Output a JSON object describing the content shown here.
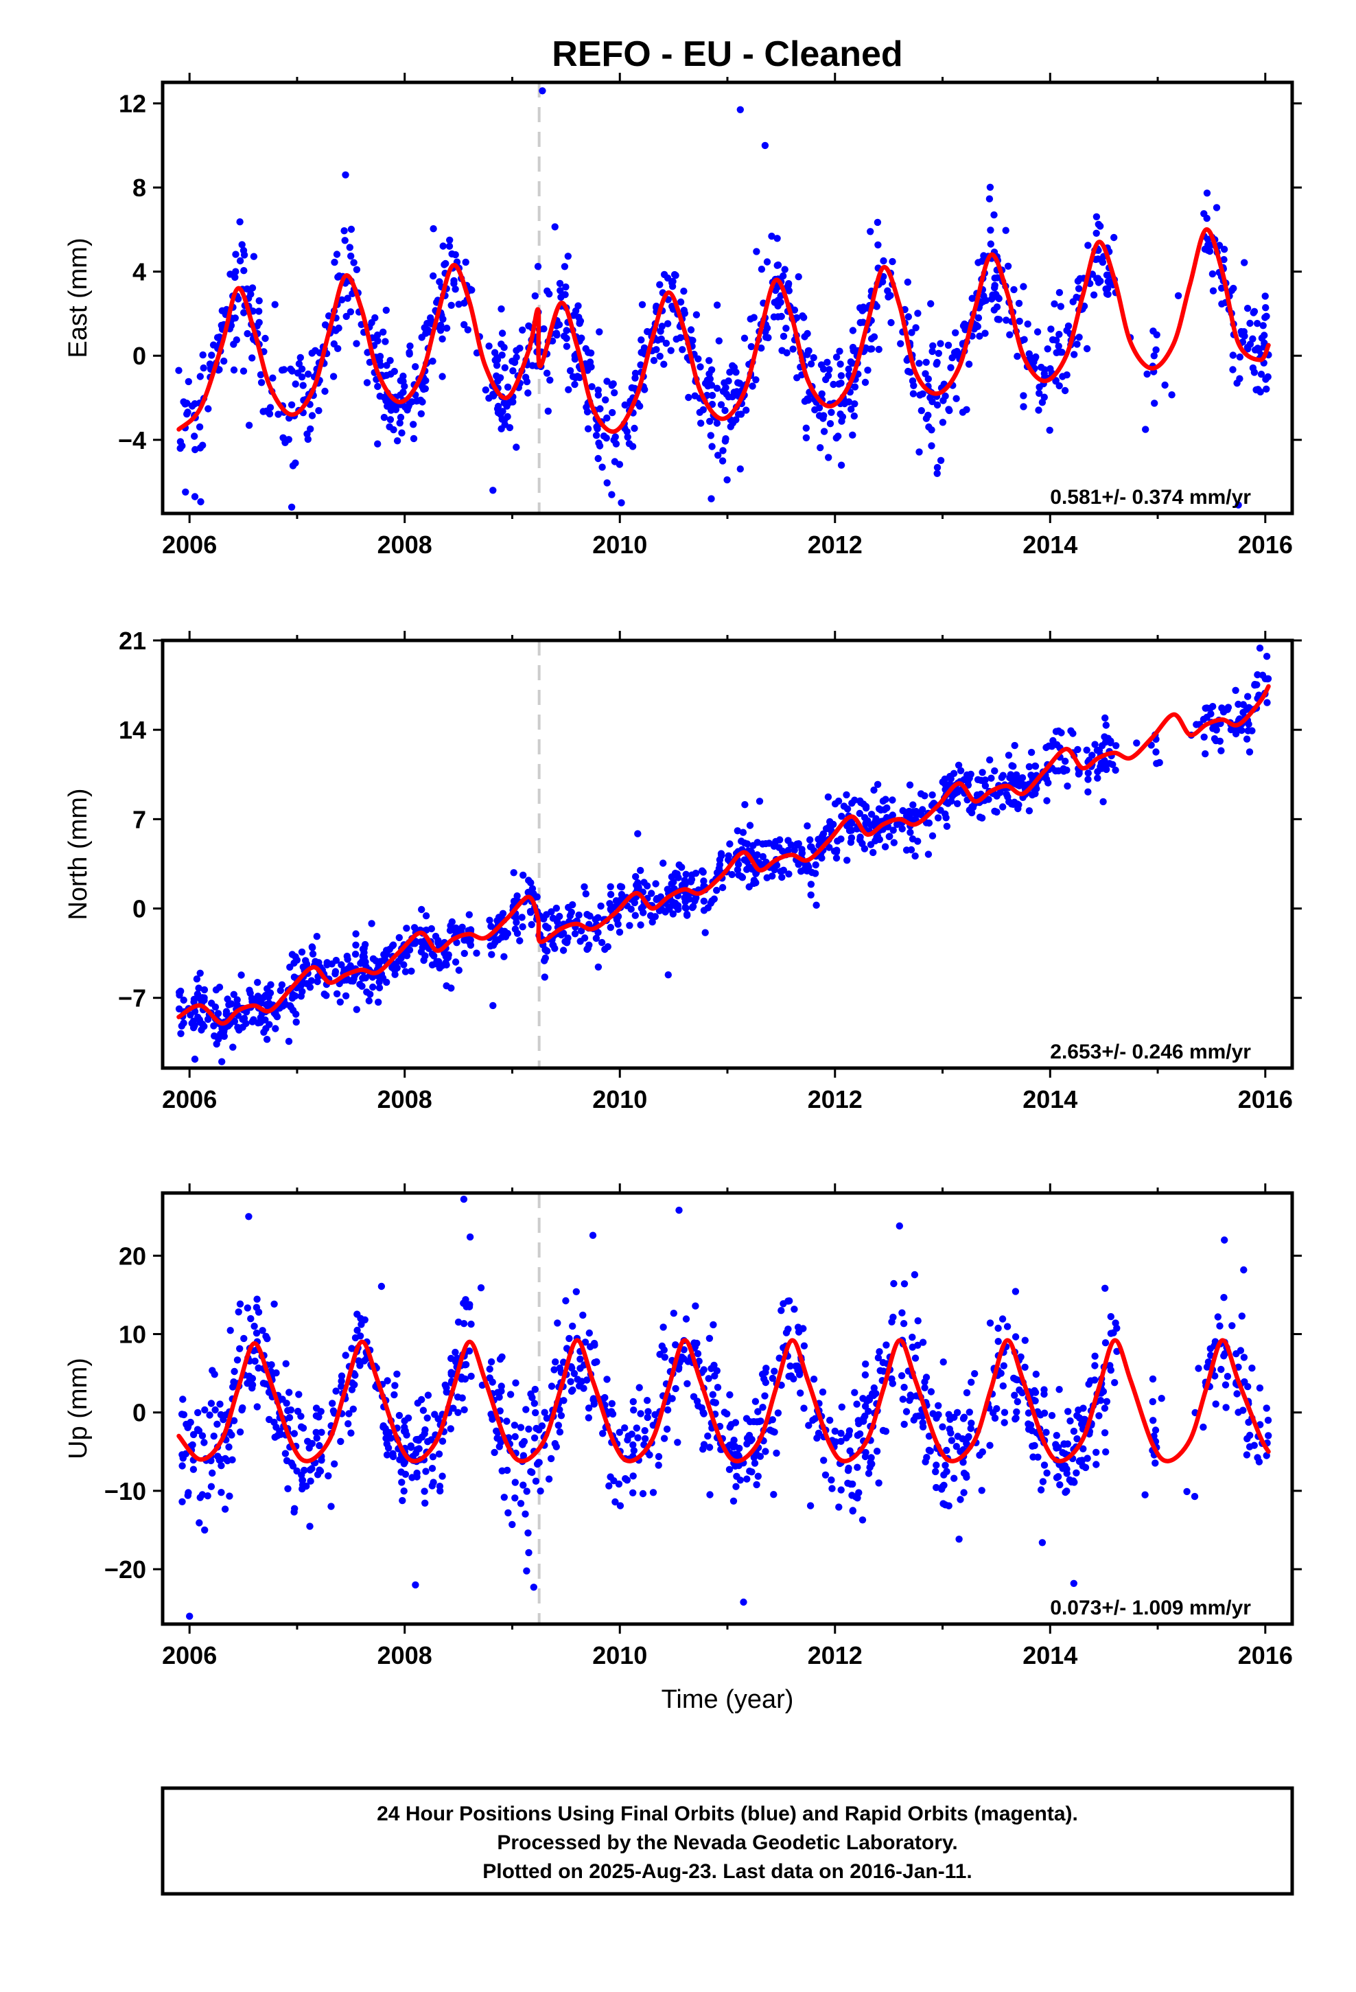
{
  "title": "REFO  - EU - Cleaned",
  "xlabel": "Time (year)",
  "colors": {
    "data": "#0000ff",
    "model": "#ff0000",
    "event_line": "#cccccc",
    "frame": "#000000"
  },
  "chart_data": [
    {
      "type": "scatter",
      "id": "east",
      "ylabel": "East (mm)",
      "xlim": [
        2005.75,
        2016.25
      ],
      "ylim": [
        -7.5,
        13.0
      ],
      "yticks": [
        -4,
        0,
        4,
        8,
        12
      ],
      "yticklabels": [
        "−4",
        "0",
        "4",
        "8",
        "12"
      ],
      "xticks": [
        2006,
        2008,
        2010,
        2012,
        2014,
        2016
      ],
      "xticklabels": [
        "2006",
        "2008",
        "2010",
        "2012",
        "2014",
        "2016"
      ],
      "event_line_x": 2009.25,
      "rate_label": "0.581+/- 0.374 mm/yr",
      "series": [
        {
          "role": "model",
          "x": [
            2005.9,
            2006.1,
            2006.3,
            2006.45,
            2006.6,
            2006.75,
            2006.95,
            2007.15,
            2007.3,
            2007.45,
            2007.6,
            2007.75,
            2007.95,
            2008.15,
            2008.3,
            2008.45,
            2008.6,
            2008.75,
            2008.95,
            2009.15,
            2009.24,
            2009.26,
            2009.45,
            2009.6,
            2009.75,
            2009.95,
            2010.15,
            2010.3,
            2010.45,
            2010.6,
            2010.75,
            2010.95,
            2011.15,
            2011.3,
            2011.45,
            2011.6,
            2011.75,
            2011.95,
            2012.15,
            2012.3,
            2012.45,
            2012.6,
            2012.75,
            2012.95,
            2013.15,
            2013.3,
            2013.45,
            2013.6,
            2013.75,
            2013.95,
            2014.15,
            2014.3,
            2014.45,
            2014.6,
            2014.75,
            2014.95,
            2015.15,
            2015.3,
            2015.45,
            2015.6,
            2015.75,
            2015.95,
            2016.03
          ],
          "y": [
            -3.5,
            -2.5,
            0.5,
            3.2,
            1.2,
            -1.5,
            -2.8,
            -1.6,
            1.2,
            3.8,
            2.2,
            -0.8,
            -2.2,
            -1.0,
            1.8,
            4.3,
            2.6,
            -0.5,
            -2.0,
            0.2,
            2.2,
            -0.5,
            2.5,
            0.5,
            -2.5,
            -3.6,
            -2.0,
            0.8,
            3.0,
            1.2,
            -1.7,
            -3.0,
            -1.8,
            1.0,
            3.6,
            1.8,
            -1.2,
            -2.4,
            -1.2,
            1.5,
            4.2,
            2.4,
            -0.8,
            -1.8,
            -0.6,
            2.2,
            4.8,
            3.0,
            0.0,
            -1.2,
            0.0,
            2.8,
            5.4,
            3.6,
            0.6,
            -0.6,
            0.6,
            3.4,
            6.0,
            4.0,
            0.6,
            -0.2,
            0.5
          ]
        },
        {
          "role": "data",
          "count": 1250,
          "spread": 1.3,
          "seed": 11,
          "outliers": [
            [
              2009.28,
              12.6
            ],
            [
              2011.12,
              11.7
            ],
            [
              2011.35,
              10.0
            ],
            [
              2007.45,
              8.6
            ],
            [
              2008.82,
              -6.4
            ],
            [
              2006.05,
              -6.7
            ],
            [
              2006.95,
              -7.2
            ],
            [
              2012.95,
              -5.6
            ],
            [
              2015.75,
              -7.1
            ],
            [
              2010.85,
              -6.8
            ]
          ],
          "gaps": [
            [
              2008.62,
              2008.78
            ],
            [
              2012.55,
              2012.62
            ],
            [
              2014.62,
              2014.95
            ],
            [
              2015.0,
              2015.42
            ]
          ]
        }
      ]
    },
    {
      "type": "scatter",
      "id": "north",
      "ylabel": "North (mm)",
      "xlim": [
        2005.75,
        2016.25
      ],
      "ylim": [
        -12.5,
        21.0
      ],
      "yticks": [
        -7,
        0,
        7,
        14,
        21
      ],
      "yticklabels": [
        "−7",
        "0",
        "7",
        "14",
        "21"
      ],
      "xticks": [
        2006,
        2008,
        2010,
        2012,
        2014,
        2016
      ],
      "xticklabels": [
        "2006",
        "2008",
        "2010",
        "2012",
        "2014",
        "2016"
      ],
      "event_line_x": 2009.25,
      "rate_label": "2.653+/- 0.246 mm/yr",
      "series": [
        {
          "role": "model",
          "x": [
            2005.9,
            2006.1,
            2006.3,
            2006.45,
            2006.6,
            2006.75,
            2006.95,
            2007.15,
            2007.3,
            2007.45,
            2007.6,
            2007.75,
            2007.95,
            2008.15,
            2008.3,
            2008.45,
            2008.6,
            2008.75,
            2008.95,
            2009.15,
            2009.24,
            2009.26,
            2009.45,
            2009.6,
            2009.75,
            2009.95,
            2010.15,
            2010.3,
            2010.45,
            2010.6,
            2010.75,
            2010.95,
            2011.15,
            2011.3,
            2011.45,
            2011.6,
            2011.75,
            2011.95,
            2012.15,
            2012.3,
            2012.45,
            2012.6,
            2012.75,
            2012.95,
            2013.15,
            2013.3,
            2013.45,
            2013.6,
            2013.75,
            2013.95,
            2014.15,
            2014.3,
            2014.45,
            2014.6,
            2014.75,
            2014.95,
            2015.15,
            2015.3,
            2015.45,
            2015.6,
            2015.75,
            2015.95,
            2016.03
          ],
          "y": [
            -8.5,
            -7.6,
            -9.0,
            -8.0,
            -7.6,
            -8.0,
            -6.2,
            -4.6,
            -5.8,
            -5.2,
            -4.8,
            -5.0,
            -3.4,
            -1.9,
            -3.3,
            -2.4,
            -2.0,
            -2.3,
            -0.8,
            0.9,
            -0.8,
            -2.6,
            -1.6,
            -1.2,
            -1.6,
            -0.4,
            1.2,
            0.0,
            0.9,
            1.5,
            1.2,
            2.6,
            4.4,
            3.0,
            3.8,
            4.2,
            3.8,
            5.4,
            7.2,
            5.8,
            6.6,
            7.0,
            6.6,
            8.0,
            9.8,
            8.4,
            9.2,
            9.6,
            9.0,
            10.8,
            12.5,
            11.0,
            11.8,
            12.2,
            11.8,
            13.4,
            15.2,
            13.6,
            14.4,
            14.8,
            14.4,
            16.2,
            17.4
          ]
        },
        {
          "role": "data",
          "count": 1250,
          "spread": 1.1,
          "seed": 23,
          "outliers": [
            [
              2006.05,
              -11.8
            ],
            [
              2006.3,
              -12.0
            ],
            [
              2008.82,
              -7.6
            ],
            [
              2010.45,
              -5.2
            ],
            [
              2015.95,
              20.4
            ],
            [
              2011.3,
              8.4
            ]
          ],
          "gaps": [
            [
              2008.62,
              2008.78
            ],
            [
              2012.55,
              2012.62
            ],
            [
              2014.62,
              2014.95
            ],
            [
              2015.0,
              2015.42
            ]
          ]
        }
      ]
    },
    {
      "type": "scatter",
      "id": "up",
      "ylabel": "Up (mm)",
      "xlim": [
        2005.75,
        2016.25
      ],
      "ylim": [
        -27.0,
        28.0
      ],
      "yticks": [
        -20,
        -10,
        0,
        10,
        20
      ],
      "yticklabels": [
        "−20",
        "−10",
        "0",
        "10",
        "20"
      ],
      "xticks": [
        2006,
        2008,
        2010,
        2012,
        2014,
        2016
      ],
      "xticklabels": [
        "2006",
        "2008",
        "2010",
        "2012",
        "2014",
        "2016"
      ],
      "event_line_x": 2009.25,
      "rate_label": "0.073+/- 1.009 mm/yr",
      "series": [
        {
          "role": "model",
          "x": [
            2005.9,
            2006.1,
            2006.3,
            2006.45,
            2006.6,
            2006.75,
            2006.95,
            2007.1,
            2007.3,
            2007.45,
            2007.6,
            2007.75,
            2007.95,
            2008.1,
            2008.3,
            2008.45,
            2008.6,
            2008.75,
            2008.95,
            2009.1,
            2009.3,
            2009.45,
            2009.6,
            2009.75,
            2009.95,
            2010.1,
            2010.3,
            2010.45,
            2010.6,
            2010.75,
            2010.95,
            2011.1,
            2011.3,
            2011.45,
            2011.6,
            2011.75,
            2011.95,
            2012.1,
            2012.3,
            2012.45,
            2012.6,
            2012.75,
            2012.95,
            2013.1,
            2013.3,
            2013.45,
            2013.6,
            2013.75,
            2013.95,
            2014.1,
            2014.3,
            2014.45,
            2014.6,
            2014.75,
            2014.95,
            2015.1,
            2015.3,
            2015.45,
            2015.6,
            2015.75,
            2015.95,
            2016.03
          ],
          "y": [
            -3.0,
            -6.0,
            -3.5,
            3.0,
            8.8,
            4.0,
            -4.0,
            -6.2,
            -3.5,
            3.0,
            9.0,
            4.0,
            -4.0,
            -6.2,
            -3.5,
            3.0,
            9.0,
            4.0,
            -4.0,
            -6.2,
            -3.5,
            3.0,
            9.2,
            4.0,
            -4.0,
            -6.2,
            -3.5,
            3.0,
            9.2,
            4.0,
            -4.0,
            -6.2,
            -3.5,
            3.0,
            9.2,
            4.0,
            -4.0,
            -6.2,
            -3.5,
            3.0,
            9.2,
            4.0,
            -4.0,
            -6.2,
            -3.5,
            3.0,
            9.2,
            4.0,
            -4.0,
            -6.2,
            -3.5,
            3.0,
            9.2,
            4.0,
            -4.0,
            -6.2,
            -3.5,
            3.0,
            9.2,
            4.0,
            -3.0,
            -5.0
          ]
        },
        {
          "role": "data",
          "count": 1250,
          "spread": 4.0,
          "seed": 37,
          "outliers": [
            [
              2006.0,
              -26.0
            ],
            [
              2006.55,
              25.0
            ],
            [
              2008.55,
              27.2
            ],
            [
              2010.55,
              25.8
            ],
            [
              2012.6,
              23.8
            ],
            [
              2011.15,
              -24.2
            ],
            [
              2009.2,
              -22.3
            ],
            [
              2008.1,
              -22.0
            ],
            [
              2009.75,
              22.6
            ],
            [
              2015.62,
              22.0
            ]
          ],
          "gaps": [
            [
              2008.62,
              2008.78
            ],
            [
              2012.55,
              2012.62
            ],
            [
              2014.62,
              2014.95
            ],
            [
              2015.0,
              2015.42
            ]
          ]
        }
      ]
    }
  ],
  "footer": {
    "line1": "24 Hour Positions Using Final Orbits (blue) and Rapid Orbits (magenta).",
    "line2": "Processed by the Nevada Geodetic Laboratory.",
    "line3": "Plotted on 2025-Aug-23. Last data on 2016-Jan-11."
  }
}
